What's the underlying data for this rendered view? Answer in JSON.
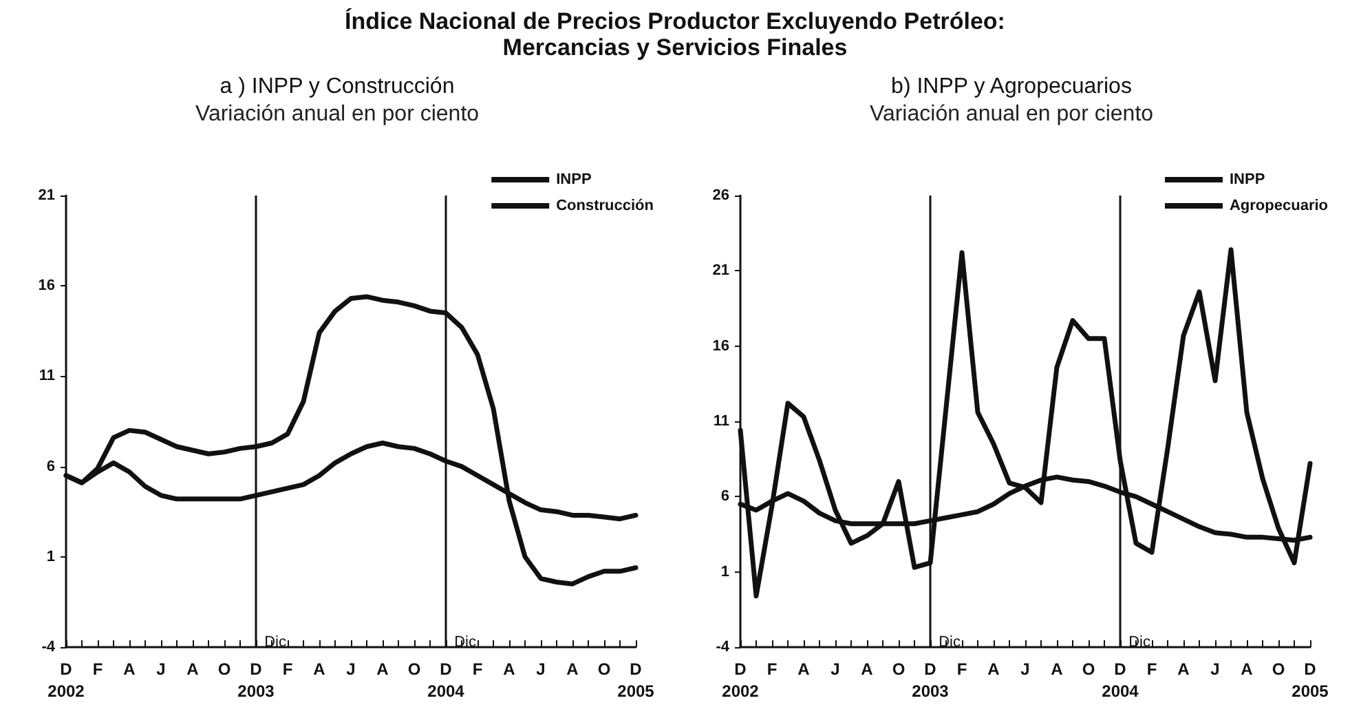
{
  "chart_data": [
    {
      "type": "other",
      "title": "Índice Nacional de Precios Productor Excluyendo Petróleo:\nMercancias y Servicios Finales"
    },
    {
      "type": "line",
      "title": "a ) INPP y Construcción",
      "subtitle": "Variación anual en por ciento",
      "categories": [
        "D\n2002",
        null,
        "F",
        null,
        "A",
        null,
        "J",
        null,
        "A",
        null,
        "O",
        null,
        "D\n2003",
        null,
        "F",
        null,
        "A",
        null,
        "J",
        null,
        "A",
        null,
        "O",
        null,
        "D\n2004",
        null,
        "F",
        null,
        "A",
        null,
        "J",
        null,
        "A",
        null,
        "O",
        null,
        "D\n2005"
      ],
      "series": [
        {
          "name": "INPP",
          "color": "#111111",
          "values": [
            5.5,
            5.1,
            5.7,
            6.2,
            5.7,
            4.9,
            4.4,
            4.2,
            4.2,
            4.2,
            4.2,
            4.2,
            4.4,
            4.6,
            4.8,
            5.0,
            5.5,
            6.2,
            6.7,
            7.1,
            7.3,
            7.1,
            7.0,
            6.7,
            6.3,
            6.0,
            5.5,
            5.0,
            4.5,
            4.0,
            3.6,
            3.5,
            3.3,
            3.3,
            3.2,
            3.1,
            3.3
          ]
        },
        {
          "name": "Construcción",
          "color": "#111111",
          "values": [
            5.5,
            5.1,
            5.9,
            7.6,
            8.0,
            7.9,
            7.5,
            7.1,
            6.9,
            6.7,
            6.8,
            7.0,
            7.1,
            7.3,
            7.8,
            9.6,
            13.4,
            14.6,
            15.3,
            15.4,
            15.2,
            15.1,
            14.9,
            14.6,
            14.5,
            13.7,
            12.2,
            9.2,
            4.1,
            1.0,
            -0.2,
            -0.4,
            -0.5,
            -0.1,
            0.2,
            0.2,
            0.4
          ]
        }
      ],
      "ylim": [
        -4,
        21
      ],
      "yticks": [
        -4,
        1,
        6,
        11,
        16,
        21
      ],
      "ref_lines": [
        {
          "axis": "x",
          "value": "D\n2003",
          "label": "Dic",
          "color": "#111111"
        },
        {
          "axis": "x",
          "value": "D\n2004",
          "label": "Dic",
          "color": "#111111"
        }
      ],
      "legend": "top right"
    },
    {
      "type": "line",
      "title": "b) INPP y Agropecuarios",
      "subtitle": "Variación anual en por ciento",
      "categories": [
        "D\n2002",
        null,
        "F",
        null,
        "A",
        null,
        "J",
        null,
        "A",
        null,
        "O",
        null,
        "D\n2003",
        null,
        "F",
        null,
        "A",
        null,
        "J",
        null,
        "A",
        null,
        "O",
        null,
        "D\n2004",
        null,
        "F",
        null,
        "A",
        null,
        "J",
        null,
        "A",
        null,
        "O",
        null,
        "D\n2005"
      ],
      "series": [
        {
          "name": "INPP",
          "color": "#111111",
          "values": [
            5.5,
            5.1,
            5.7,
            6.2,
            5.7,
            4.9,
            4.4,
            4.2,
            4.2,
            4.2,
            4.2,
            4.2,
            4.4,
            4.6,
            4.8,
            5.0,
            5.5,
            6.2,
            6.7,
            7.1,
            7.3,
            7.1,
            7.0,
            6.7,
            6.3,
            6.0,
            5.5,
            5.0,
            4.5,
            4.0,
            3.6,
            3.5,
            3.3,
            3.3,
            3.2,
            3.1,
            3.3
          ]
        },
        {
          "name": "Agropecuario",
          "color": "#111111",
          "values": [
            10.4,
            -0.6,
            5.4,
            12.2,
            11.3,
            8.4,
            5.1,
            2.9,
            3.4,
            4.2,
            7.0,
            1.3,
            1.6,
            11.9,
            22.2,
            11.6,
            9.5,
            6.9,
            6.6,
            5.6,
            14.6,
            17.7,
            16.5,
            16.5,
            8.4,
            2.9,
            2.3,
            9.2,
            16.7,
            19.6,
            13.7,
            22.4,
            11.6,
            7.2,
            3.9,
            1.6,
            8.2
          ]
        }
      ],
      "ylim": [
        -4,
        26
      ],
      "yticks": [
        -4,
        1,
        6,
        11,
        16,
        21,
        26
      ],
      "ref_lines": [
        {
          "axis": "x",
          "value": "D\n2003",
          "label": "Dic",
          "color": "#111111"
        },
        {
          "axis": "x",
          "value": "D\n2004",
          "label": "Dic",
          "color": "#111111"
        }
      ],
      "legend": "top right"
    }
  ]
}
